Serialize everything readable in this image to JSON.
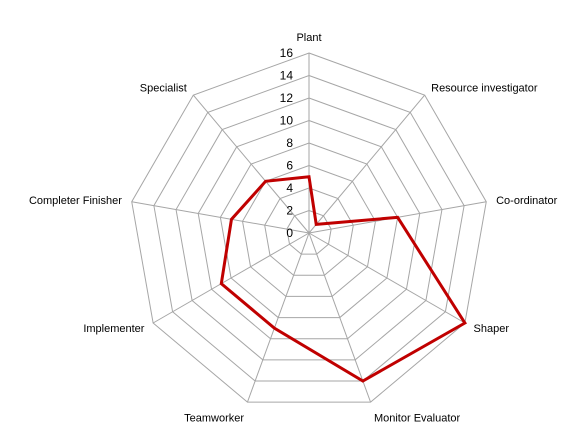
{
  "chart_data": {
    "type": "radar",
    "categories": [
      "Plant",
      "Resource investigator",
      "Co-ordinator",
      "Shaper",
      "Monitor Evaluator",
      "Teamworker",
      "Implementer",
      "Completer Finisher",
      "Specialist"
    ],
    "series": [
      {
        "values": [
          5,
          1,
          8,
          16,
          14,
          9,
          9,
          7,
          6
        ]
      }
    ],
    "r_ticks": [
      0,
      2,
      4,
      6,
      8,
      10,
      12,
      14,
      16
    ],
    "r_tick_labels": [
      "0",
      "2",
      "4",
      "6",
      "8",
      "10",
      "12",
      "14",
      "16"
    ],
    "rlim": [
      0,
      16
    ],
    "grid": true,
    "legend": "none"
  },
  "colors": {
    "series_line": "#c00000",
    "grid_line": "#a6a6a6",
    "text": "#000000"
  }
}
